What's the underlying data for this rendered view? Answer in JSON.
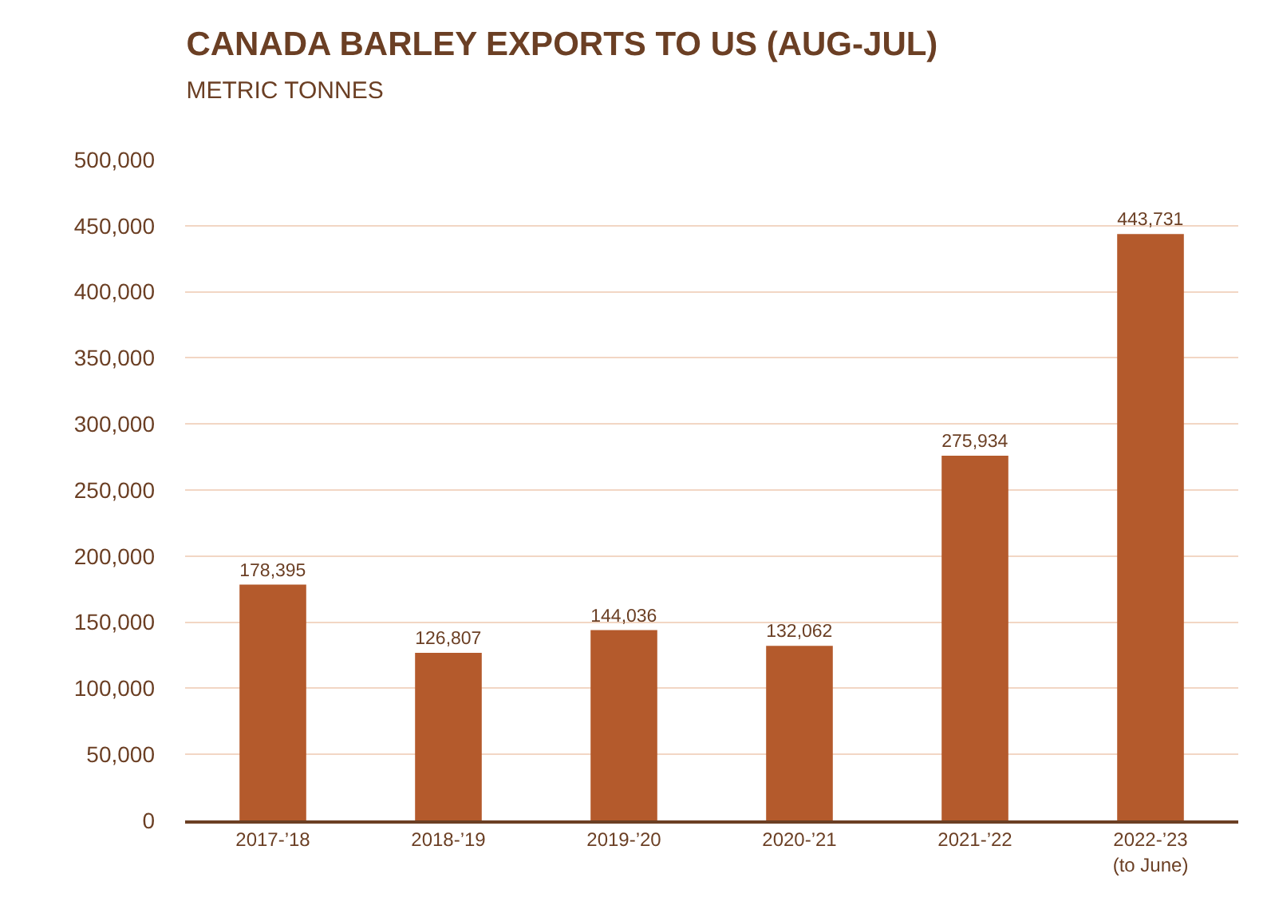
{
  "chart_data": {
    "type": "bar",
    "title": "CANADA BARLEY EXPORTS TO US (AUG-JUL)",
    "subtitle": "METRIC TONNES",
    "categories": [
      "2017-’18",
      "2018-’19",
      "2019-’20",
      "2020-’21",
      "2021-’22",
      "2022-’23\n(to June)"
    ],
    "values": [
      178395,
      126807,
      144036,
      132062,
      275934,
      443731
    ],
    "color": "#b45a2c",
    "ylim": [
      0,
      500000
    ],
    "yticks": [
      {
        "value": 0,
        "label": "0"
      },
      {
        "value": 50000,
        "label": "50,000"
      },
      {
        "value": 100000,
        "label": "100,000"
      },
      {
        "value": 150000,
        "label": "150,000"
      },
      {
        "value": 200000,
        "label": "200,000"
      },
      {
        "value": 250000,
        "label": "250,000"
      },
      {
        "value": 300000,
        "label": "300,000"
      },
      {
        "value": 350000,
        "label": "350,000"
      },
      {
        "value": 400000,
        "label": "400,000"
      },
      {
        "value": 450000,
        "label": "450,000"
      },
      {
        "value": 500000,
        "label": "500,000"
      }
    ],
    "value_labels": [
      "178,395",
      "126,807",
      "144,036",
      "132,062",
      "275,934",
      "443,731"
    ],
    "grid": "y"
  }
}
